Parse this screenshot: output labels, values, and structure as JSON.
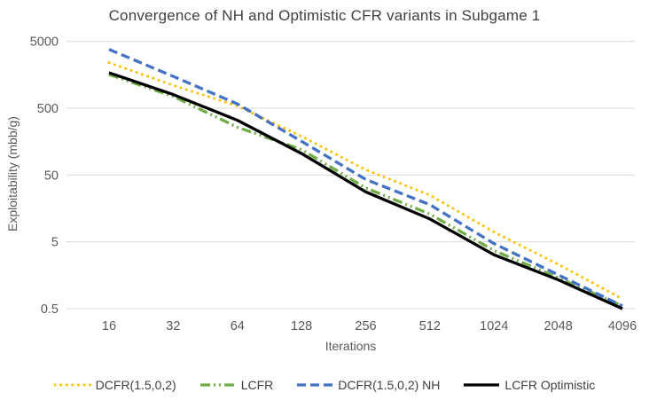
{
  "title": "Convergence of NH and Optimistic CFR variants in Subgame 1",
  "chart_data": {
    "type": "line",
    "title": "Convergence of NH and Optimistic CFR variants in Subgame 1",
    "xlabel": "Iterations",
    "ylabel": "Exploitability (mbb/g)",
    "x_scale": "log2",
    "y_scale": "log10",
    "categories": [
      16,
      32,
      64,
      128,
      256,
      512,
      1024,
      2048,
      4096
    ],
    "y_ticks": [
      5000,
      500,
      50,
      5,
      0.5
    ],
    "ylim": [
      0.5,
      5000
    ],
    "grid": "horizontal-only",
    "legend_position": "bottom",
    "gridline_color": "#D9D9D9",
    "axis_text_color": "#595959",
    "title_text_color": "#404040",
    "series": [
      {
        "name": "DCFR(1.5,0,2)",
        "color": "#FFC000",
        "dash": "dotted",
        "values": [
          2400,
          1100,
          540,
          190,
          60,
          25,
          7,
          2.3,
          0.7
        ]
      },
      {
        "name": "LCFR",
        "color": "#70AD47",
        "dash": "dashdotdot",
        "values": [
          1600,
          750,
          260,
          120,
          32,
          13,
          3.7,
          1.45,
          0.55
        ]
      },
      {
        "name": "DCFR(1.5,0,2) NH",
        "color": "#4472C4",
        "dash": "dashed",
        "values": [
          3800,
          1500,
          580,
          160,
          43,
          18,
          4.7,
          1.6,
          0.55
        ]
      },
      {
        "name": "LCFR Optimistic",
        "color": "#000000",
        "dash": "solid",
        "values": [
          1700,
          800,
          330,
          105,
          28,
          11,
          3.2,
          1.35,
          0.5
        ]
      }
    ]
  }
}
